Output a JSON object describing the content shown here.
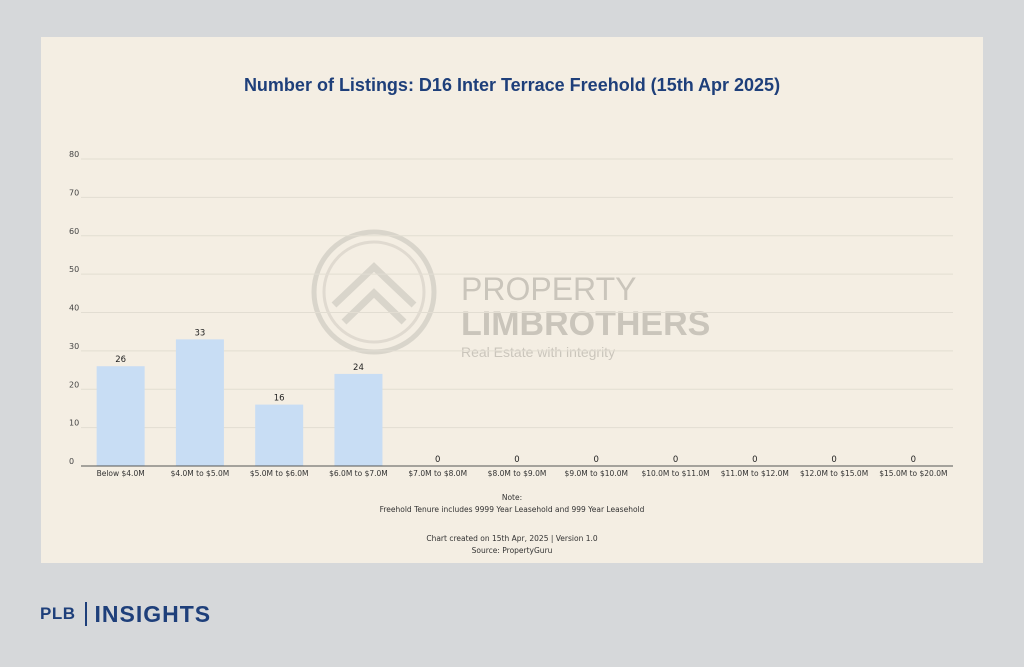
{
  "chart_data": {
    "type": "bar",
    "title": "Number of Listings: D16 Inter Terrace Freehold (15th Apr 2025)",
    "categories": [
      "Below $4.0M",
      "$4.0M to $5.0M",
      "$5.0M to $6.0M",
      "$6.0M to $7.0M",
      "$7.0M to $8.0M",
      "$8.0M to $9.0M",
      "$9.0M to $10.0M",
      "$10.0M to $11.0M",
      "$11.0M to $12.0M",
      "$12.0M to $15.0M",
      "$15.0M to $20.0M"
    ],
    "values": [
      26,
      33,
      16,
      24,
      0,
      0,
      0,
      0,
      0,
      0,
      0
    ],
    "ylim": [
      0,
      80
    ],
    "yticks": [
      0,
      10,
      20,
      30,
      40,
      50,
      60,
      70,
      80
    ],
    "xlabel": "",
    "ylabel": "",
    "grid": true,
    "colors": {
      "bar": "#c8ddf4",
      "title": "#1e3f7a",
      "grid": "#e2ddd2"
    }
  },
  "notes": {
    "label": "Note:",
    "text": "Freehold Tenure includes 9999 Year Leasehold and 999 Year Leasehold",
    "created": "Chart created on 15th Apr, 2025 | Version 1.0",
    "source": "Source: PropertyGuru"
  },
  "watermark": {
    "line1": "PROPERTY",
    "line2": "LIMBROTHERS",
    "tagline": "Real Estate with integrity"
  },
  "brand": {
    "plb": "PLB",
    "insights": "INSIGHTS",
    "icon": "lightbulb-icon"
  }
}
